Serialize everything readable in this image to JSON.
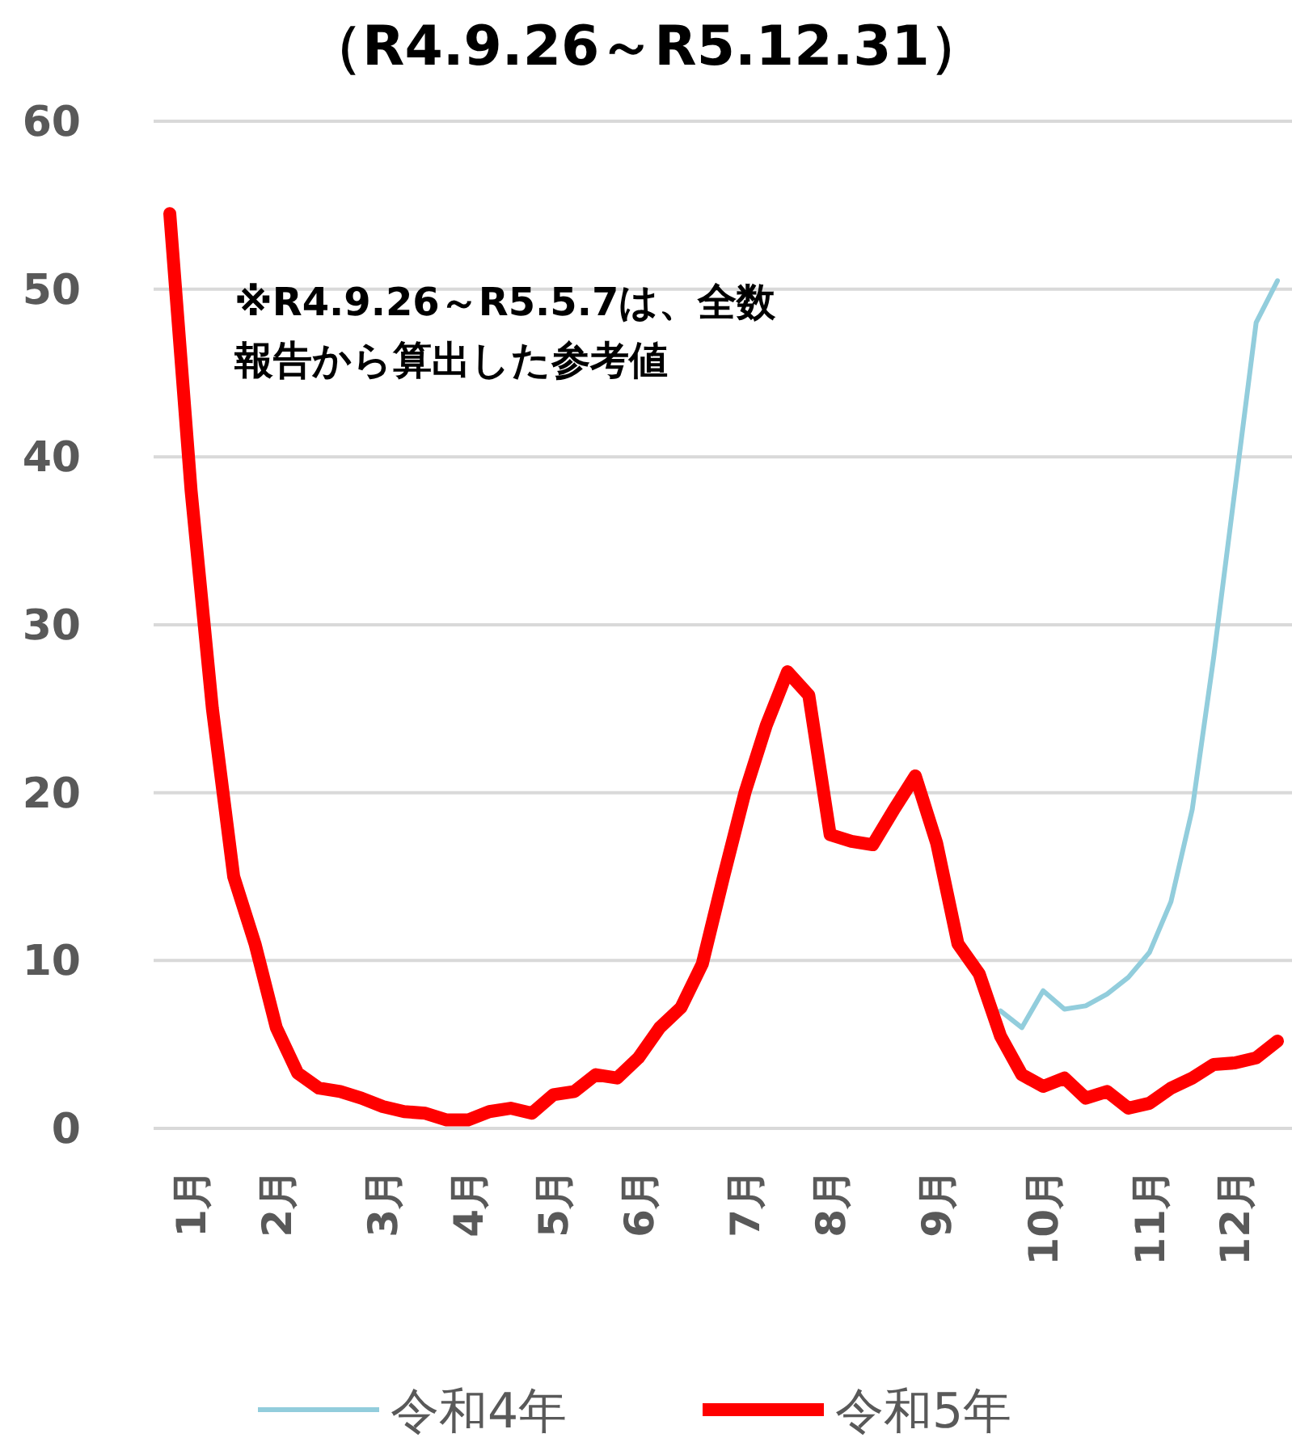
{
  "chart_data": {
    "type": "line",
    "title": "（R4.9.26～R5.12.31）",
    "categories": [
      null,
      "1月",
      null,
      null,
      null,
      "2月",
      null,
      null,
      null,
      null,
      "3月",
      null,
      null,
      null,
      "4月",
      null,
      null,
      null,
      "5月",
      null,
      null,
      null,
      "6月",
      null,
      null,
      null,
      null,
      "7月",
      null,
      null,
      null,
      "8月",
      null,
      null,
      null,
      null,
      "9月",
      null,
      null,
      null,
      null,
      "10月",
      null,
      null,
      null,
      null,
      "11月",
      null,
      null,
      null,
      "12月",
      null,
      null
    ],
    "series": [
      {
        "name": "令和4年",
        "color": "#92cddc",
        "values": [
          null,
          null,
          null,
          null,
          null,
          null,
          null,
          null,
          null,
          null,
          null,
          null,
          null,
          null,
          null,
          null,
          null,
          null,
          null,
          null,
          null,
          null,
          null,
          null,
          null,
          null,
          null,
          null,
          null,
          null,
          null,
          null,
          null,
          null,
          null,
          null,
          null,
          null,
          null,
          7.0,
          6.0,
          8.2,
          7.1,
          7.3,
          8.0,
          9.0,
          10.5,
          13.5,
          19,
          28,
          38,
          48,
          50.5
        ]
      },
      {
        "name": "令和5年",
        "color": "#ff0000",
        "values": [
          54.5,
          38,
          25,
          15,
          11,
          6,
          3.3,
          2.4,
          2.2,
          1.8,
          1.3,
          1.0,
          0.9,
          0.5,
          0.5,
          1.0,
          1.2,
          0.9,
          2.0,
          2.2,
          3.2,
          3.0,
          4.2,
          6.0,
          7.2,
          9.8,
          15,
          20,
          24,
          27.2,
          25.8,
          17.5,
          17.1,
          16.9,
          19,
          21,
          17,
          11,
          9.2,
          5.5,
          3.2,
          2.5,
          3.0,
          1.8,
          2.2,
          1.2,
          1.5,
          2.4,
          3.0,
          3.8,
          3.9,
          4.2,
          5.2
        ]
      }
    ],
    "ylim": [
      0,
      60
    ],
    "yticks": [
      0,
      10,
      20,
      30,
      40,
      50,
      60
    ],
    "grid": "y",
    "legend": "bottom",
    "annotations": [
      "※R4.9.26～R5.5.7は、全数",
      "報告から算出した参考値"
    ]
  }
}
